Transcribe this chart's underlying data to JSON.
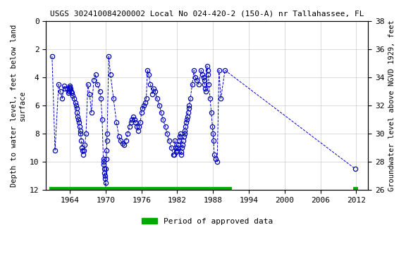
{
  "title": "USGS 302410084200002 Local No 024-420-2 (150-A) nr Tallahassee, FL",
  "ylabel_left": "Depth to water level, feet below land\nsurface",
  "ylabel_right": "Groundwater level above NGVD 1929, feet",
  "ylim_left": [
    12,
    0
  ],
  "ylim_right": [
    26,
    38
  ],
  "xlim": [
    1960,
    2014
  ],
  "xticks": [
    1964,
    1970,
    1976,
    1982,
    1988,
    1994,
    2000,
    2006,
    2012
  ],
  "yticks_left": [
    0,
    2,
    4,
    6,
    8,
    10,
    12
  ],
  "yticks_right": [
    26,
    28,
    30,
    32,
    34,
    36,
    38
  ],
  "bg_color": "#ffffff",
  "grid_color": "#cccccc",
  "data_color": "#0000cc",
  "legend_label": "Period of approved data",
  "legend_color": "#00aa00",
  "approved_bar_xstart": 1960.5,
  "approved_bar_xend": 1991.2,
  "approved_bar2_xstart": 2011.5,
  "approved_bar2_xend": 2012.3,
  "data_x": [
    1961.0,
    1961.5,
    1962.1,
    1962.4,
    1962.7,
    1963.0,
    1963.2,
    1963.5,
    1963.7,
    1963.85,
    1963.9,
    1963.95,
    1964.0,
    1964.1,
    1964.2,
    1964.3,
    1964.5,
    1964.7,
    1964.9,
    1965.0,
    1965.1,
    1965.2,
    1965.3,
    1965.4,
    1965.5,
    1965.6,
    1965.7,
    1965.8,
    1965.9,
    1966.0,
    1966.1,
    1966.2,
    1966.3,
    1966.5,
    1966.7,
    1967.0,
    1967.3,
    1967.6,
    1968.0,
    1968.3,
    1968.6,
    1969.0,
    1969.2,
    1969.4,
    1969.6,
    1969.65,
    1969.7,
    1969.75,
    1969.8,
    1969.85,
    1969.9,
    1969.95,
    1970.0,
    1970.05,
    1970.1,
    1970.15,
    1970.2,
    1970.25,
    1970.5,
    1970.8,
    1971.3,
    1971.8,
    1972.2,
    1972.5,
    1972.8,
    1973.1,
    1973.4,
    1973.7,
    1974.0,
    1974.2,
    1974.4,
    1974.6,
    1974.8,
    1975.0,
    1975.2,
    1975.4,
    1975.6,
    1975.8,
    1976.0,
    1976.2,
    1976.4,
    1976.6,
    1976.8,
    1977.0,
    1977.2,
    1977.5,
    1977.8,
    1978.0,
    1978.3,
    1978.6,
    1979.0,
    1979.3,
    1979.6,
    1980.0,
    1980.3,
    1980.6,
    1981.0,
    1981.3,
    1981.5,
    1981.6,
    1981.7,
    1981.8,
    1982.0,
    1982.1,
    1982.2,
    1982.3,
    1982.4,
    1982.5,
    1982.6,
    1982.7,
    1982.8,
    1982.9,
    1983.0,
    1983.1,
    1983.2,
    1983.3,
    1983.4,
    1983.5,
    1983.6,
    1983.7,
    1983.8,
    1983.9,
    1984.0,
    1984.2,
    1984.5,
    1984.8,
    1985.0,
    1985.3,
    1985.6,
    1986.0,
    1986.2,
    1986.4,
    1986.5,
    1986.6,
    1986.7,
    1986.8,
    1987.0,
    1987.1,
    1987.2,
    1987.3,
    1987.5,
    1987.7,
    1987.9,
    1988.0,
    1988.1,
    1988.2,
    1988.5,
    1988.7,
    1989.0,
    1989.3,
    1990.0,
    2011.8
  ],
  "data_y": [
    2.5,
    9.2,
    4.5,
    5.0,
    5.5,
    4.6,
    4.8,
    4.8,
    5.1,
    5.0,
    4.8,
    4.7,
    4.6,
    4.8,
    5.0,
    5.1,
    5.3,
    5.5,
    5.8,
    6.0,
    6.2,
    6.5,
    6.8,
    7.0,
    7.2,
    7.5,
    7.8,
    8.0,
    8.5,
    9.0,
    9.2,
    9.5,
    9.2,
    8.8,
    8.0,
    4.5,
    5.2,
    6.5,
    4.2,
    3.8,
    4.5,
    5.0,
    5.5,
    7.0,
    9.8,
    10.0,
    10.2,
    10.5,
    10.8,
    11.0,
    11.2,
    11.5,
    12.0,
    10.5,
    9.8,
    9.2,
    8.5,
    8.0,
    2.5,
    3.8,
    5.5,
    7.2,
    8.2,
    8.5,
    8.7,
    8.8,
    8.5,
    8.0,
    7.5,
    7.2,
    7.0,
    6.8,
    7.0,
    7.2,
    7.5,
    7.8,
    7.5,
    7.2,
    6.5,
    6.2,
    6.0,
    5.8,
    5.5,
    3.5,
    3.8,
    4.5,
    5.2,
    4.8,
    5.0,
    5.5,
    6.0,
    6.5,
    7.0,
    7.5,
    8.0,
    8.5,
    9.0,
    9.5,
    9.5,
    8.5,
    9.0,
    9.3,
    9.2,
    9.0,
    8.8,
    8.5,
    8.2,
    8.0,
    9.5,
    9.3,
    9.0,
    8.8,
    8.5,
    8.2,
    8.0,
    7.8,
    7.5,
    7.2,
    7.0,
    6.8,
    6.5,
    6.2,
    6.0,
    5.5,
    4.5,
    3.5,
    4.0,
    4.2,
    4.5,
    3.5,
    3.8,
    4.0,
    4.2,
    4.5,
    4.8,
    5.0,
    3.2,
    3.5,
    3.8,
    4.5,
    5.5,
    6.5,
    7.5,
    8.0,
    8.5,
    9.5,
    9.8,
    10.0,
    3.5,
    5.5,
    3.5,
    10.5
  ]
}
